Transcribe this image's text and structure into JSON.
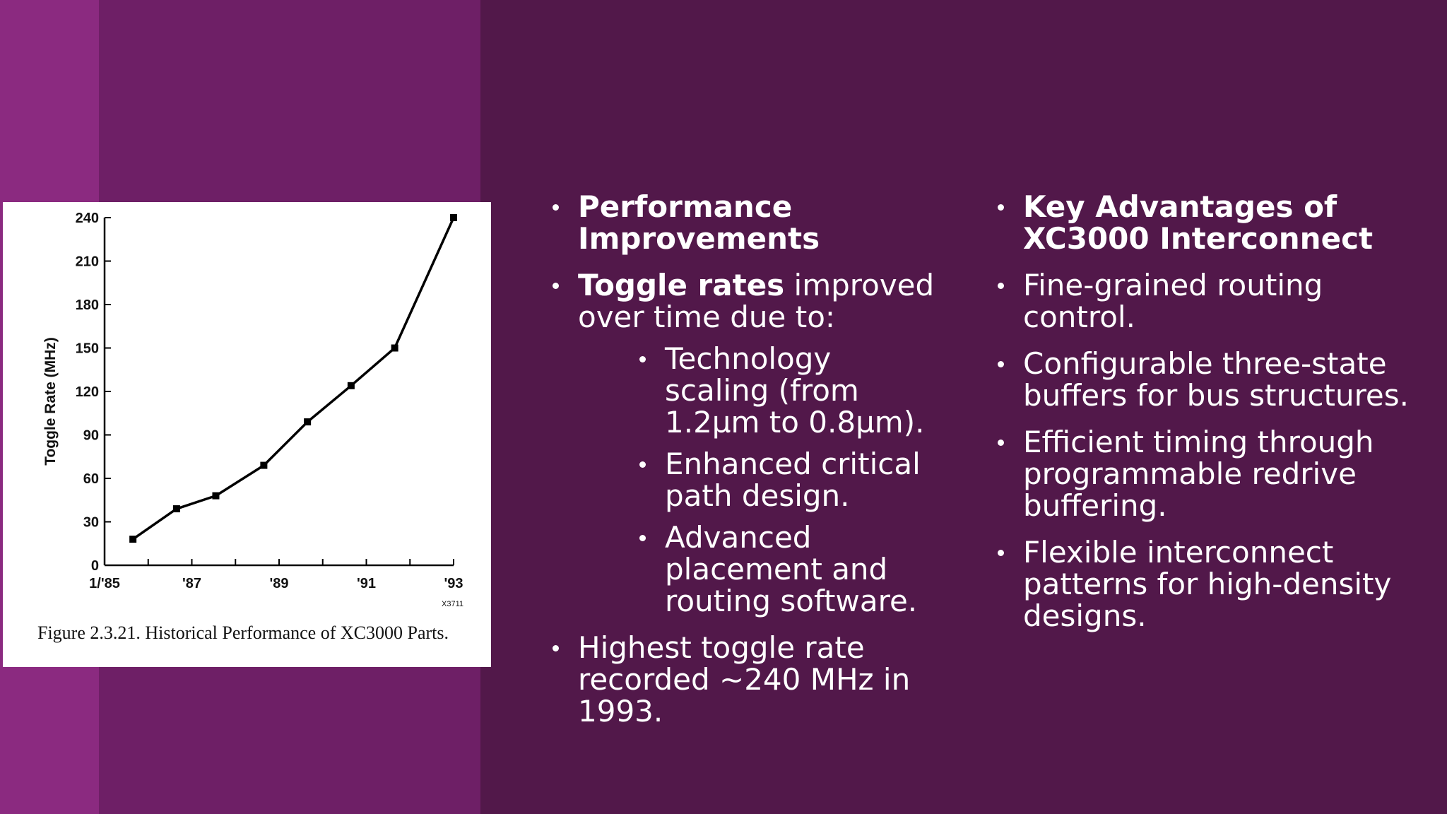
{
  "slide": {
    "colors": {
      "background": "#52184a",
      "band_light": "#8b2a80",
      "band_mid": "#6e1f66",
      "text": "#ffffff"
    },
    "left_column": {
      "heading": "Performance Improvements",
      "toggle_bold": "Toggle rates",
      "toggle_rest": " improved over time due to:",
      "sub_items": [
        "Technology scaling (from 1.2µm to 0.8µm).",
        "Enhanced critical path design.",
        "Advanced placement and routing software."
      ],
      "highest": "Highest toggle rate recorded ~240 MHz in 1993."
    },
    "right_column": {
      "heading": "Key Advantages of XC3000 Interconnect",
      "items": [
        "Fine-grained routing control.",
        "Configurable three-state buffers for bus structures.",
        "Efficient timing through programmable redrive buffering.",
        "Flexible interconnect patterns for high-density designs."
      ]
    }
  },
  "chart_data": {
    "type": "line",
    "title": "",
    "caption": "Figure 2.3.21. Historical Performance of XC3000 Parts.",
    "figure_code": "X3711",
    "xlabel": "",
    "ylabel": "Toggle Rate (MHz)",
    "xlim": [
      1985,
      1993
    ],
    "ylim": [
      0,
      240
    ],
    "xticks": [
      {
        "value": 1985,
        "label": "1/'85"
      },
      {
        "value": 1987,
        "label": "'87"
      },
      {
        "value": 1989,
        "label": "'89"
      },
      {
        "value": 1991,
        "label": "'91"
      },
      {
        "value": 1993,
        "label": "'93"
      }
    ],
    "yticks": [
      0,
      30,
      60,
      90,
      120,
      150,
      180,
      210,
      240
    ],
    "x": [
      1985.65,
      1986.65,
      1987.55,
      1988.65,
      1989.65,
      1990.65,
      1991.65,
      1993.0
    ],
    "series": [
      {
        "values": [
          18,
          39,
          48,
          69,
          99,
          124,
          150,
          240
        ]
      }
    ],
    "grid": false,
    "legend": "none"
  }
}
